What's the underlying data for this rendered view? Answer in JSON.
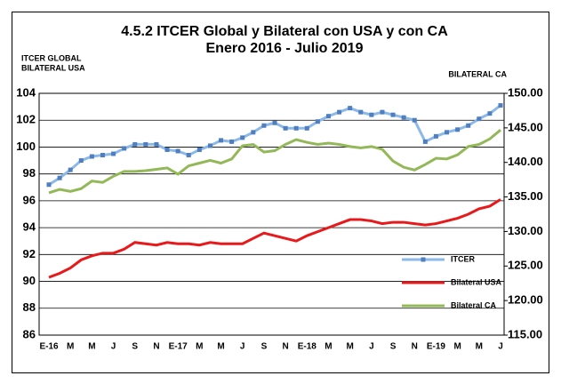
{
  "chart_data": {
    "type": "line",
    "title": "4.5.2 ITCER  Global y Bilateral con USA y con CA",
    "subtitle": "Enero 2016  - Julio 2019",
    "y_label": [
      "ITCER GLOBAL",
      "BILATERAL USA"
    ],
    "y2_label": "BILATERAL CA",
    "categories": [
      "E-16",
      null,
      "M",
      null,
      "M",
      null,
      "J",
      null,
      "S",
      null,
      "N",
      null,
      "E-17",
      null,
      "M",
      null,
      "M",
      null,
      "J",
      null,
      "S",
      null,
      "N",
      null,
      "E-18",
      null,
      "M",
      null,
      "M",
      null,
      "J",
      null,
      "S",
      null,
      "N",
      null,
      "E-19",
      null,
      "M",
      null,
      "M",
      null,
      "J"
    ],
    "series": [
      {
        "name": "ITCER",
        "color": "#8db9e8",
        "marker": "square",
        "marker_color": "#4f7fc0",
        "values": [
          97.2,
          97.7,
          98.3,
          99.0,
          99.3,
          99.4,
          99.5,
          99.9,
          100.2,
          100.2,
          100.2,
          99.8,
          99.7,
          99.4,
          99.8,
          100.1,
          100.5,
          100.4,
          100.7,
          101.1,
          101.6,
          101.8,
          101.4,
          101.4,
          101.4,
          101.9,
          102.3,
          102.6,
          102.9,
          102.6,
          102.4,
          102.6,
          102.4,
          102.2,
          102.0,
          100.4,
          100.8,
          101.1,
          101.3,
          101.6,
          102.1,
          102.5,
          103.1
        ]
      },
      {
        "name": "Bilateral USA",
        "color": "#e8191b",
        "values": [
          90.3,
          90.6,
          91.0,
          91.6,
          91.9,
          92.1,
          92.1,
          92.4,
          92.9,
          92.8,
          92.7,
          92.9,
          92.8,
          92.8,
          92.7,
          92.9,
          92.8,
          92.8,
          92.8,
          93.2,
          93.6,
          93.4,
          93.2,
          93.0,
          93.4,
          93.7,
          94.0,
          94.3,
          94.6,
          94.6,
          94.5,
          94.3,
          94.4,
          94.4,
          94.3,
          94.2,
          94.3,
          94.5,
          94.7,
          95.0,
          95.4,
          95.6,
          96.1
        ]
      },
      {
        "name": "Bilateral CA",
        "color": "#93b858",
        "axis": "y2",
        "values": [
          135.6,
          136.1,
          135.8,
          136.2,
          137.3,
          137.1,
          138.0,
          138.7,
          138.7,
          138.8,
          139.0,
          139.2,
          138.3,
          139.5,
          139.9,
          140.3,
          139.9,
          140.5,
          142.4,
          142.6,
          141.5,
          141.7,
          142.6,
          143.3,
          142.9,
          142.6,
          142.8,
          142.6,
          142.3,
          142.1,
          142.3,
          141.9,
          140.2,
          139.3,
          138.9,
          139.7,
          140.6,
          140.5,
          141.1,
          142.3,
          142.6,
          143.4,
          144.7
        ]
      }
    ],
    "ylim": [
      86,
      104
    ],
    "yticks": [
      86,
      88,
      90,
      92,
      94,
      96,
      98,
      100,
      102,
      104
    ],
    "y2lim": [
      115,
      150
    ],
    "y2ticks": [
      {
        "value": 115,
        "label": "115.00"
      },
      {
        "value": 120,
        "label": "120.00"
      },
      {
        "value": 125,
        "label": "125.00"
      },
      {
        "value": 130,
        "label": "130.00"
      },
      {
        "value": 135,
        "label": "135.00"
      },
      {
        "value": 140,
        "label": "140.00"
      },
      {
        "value": 145,
        "label": "145.00"
      },
      {
        "value": 150,
        "label": "150.00"
      }
    ],
    "grid": true,
    "legend": "right"
  }
}
